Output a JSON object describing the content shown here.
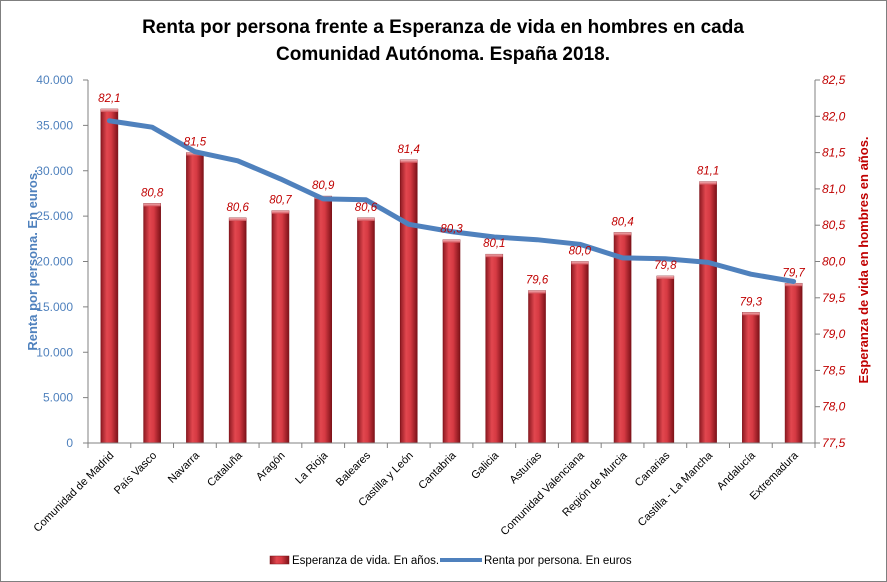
{
  "chart_data": {
    "type": "bar",
    "title_line1": "Renta por persona frente a Esperanza de vida en hombres en cada",
    "title_line2": "Comunidad Autónoma. España 2018.",
    "categories": [
      "Comunidad de Madrid",
      "País Vasco",
      "Navarra",
      "Cataluña",
      "Aragón",
      "La Rioja",
      "Baleares",
      "Castilla y León",
      "Cantabria",
      "Galicia",
      "Asturias",
      "Comunidad Valenciana",
      "Región de Murcia",
      "Canarias",
      "Castilla - La Mancha",
      "Andalucía",
      "Extremadura"
    ],
    "series": [
      {
        "name": "Esperanza de vida. En años.",
        "type": "bar",
        "axis": "right",
        "color": "#c0303a",
        "values": [
          82.1,
          80.8,
          81.5,
          80.6,
          80.7,
          80.9,
          80.6,
          81.4,
          80.3,
          80.1,
          79.6,
          80.0,
          80.4,
          79.8,
          81.1,
          79.3,
          79.7
        ],
        "labels": [
          "82,1",
          "80,8",
          "81,5",
          "80,6",
          "80,7",
          "80,9",
          "80,6",
          "81,4",
          "80,3",
          "80,1",
          "79,6",
          "80,0",
          "80,4",
          "79,8",
          "81,1",
          "79,3",
          "79,7"
        ]
      },
      {
        "name": "Renta por persona. En euros",
        "type": "line",
        "axis": "left",
        "color": "#4f81bd",
        "values": [
          35500,
          34800,
          32100,
          31100,
          29100,
          26900,
          26800,
          24100,
          23300,
          22700,
          22400,
          21900,
          20400,
          20300,
          19900,
          18600,
          17800
        ]
      }
    ],
    "y_left": {
      "label": "Renta por persona. En euros.",
      "lim": [
        0,
        40000
      ],
      "ticks": [
        "0",
        "5.000",
        "10.000",
        "15.000",
        "20.000",
        "25.000",
        "30.000",
        "35.000",
        "40.000"
      ]
    },
    "y_right": {
      "label": "Esperanza de vida en hombres en años.",
      "lim": [
        77.5,
        82.5
      ],
      "ticks": [
        "77,5",
        "78,0",
        "78,5",
        "79,0",
        "79,5",
        "80,0",
        "80,5",
        "81,0",
        "81,5",
        "82,0",
        "82,5"
      ]
    },
    "grid": false,
    "legend_position": "bottom"
  }
}
